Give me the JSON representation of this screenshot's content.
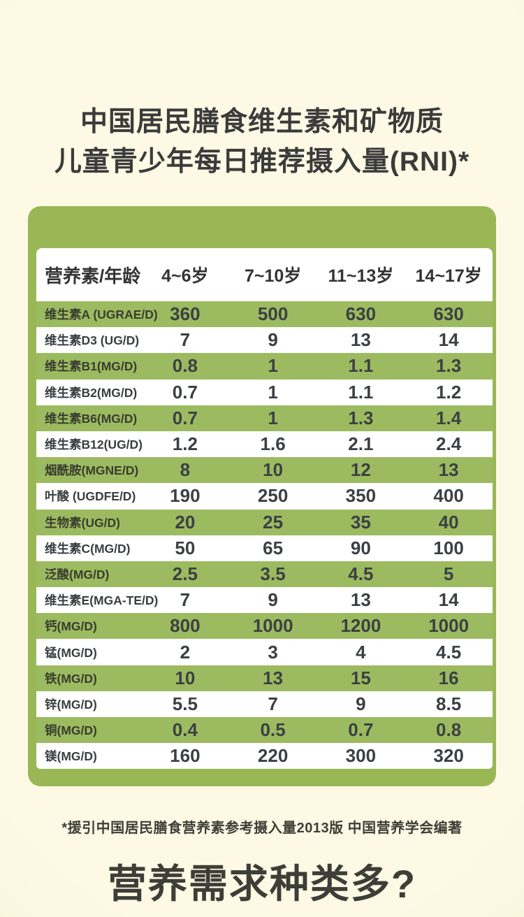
{
  "page": {
    "footnote": "*援引中国居民膳食营养素参考摄入量2013版 中国营养学会编著",
    "bottom_heading": "营养需求种类多?"
  },
  "colors": {
    "background_cream": "#fdf9e4",
    "table_frame_green": "#99b755",
    "stripe_green": "#9cbb60",
    "text_dark": "#3c4043"
  },
  "chart_data": {
    "type": "table",
    "title": "中国居民膳食维生素和矿物质 儿童青少年每日推荐摄入量(RNI)*",
    "title_lines": [
      "中国居民膳食维生素和矿物质",
      "儿童青少年每日推荐摄入量(RNI)*"
    ],
    "columns": [
      "营养素/年龄",
      "4~6岁",
      "7~10岁",
      "11~13岁",
      "14~17岁"
    ],
    "rows": [
      {
        "label": "维生素A (UGRAE/D)",
        "values": [
          "360",
          "500",
          "630",
          "630"
        ]
      },
      {
        "label": "维生素D3 (UG/D)",
        "values": [
          "7",
          "9",
          "13",
          "14"
        ]
      },
      {
        "label": "维生素B1(MG/D)",
        "values": [
          "0.8",
          "1",
          "1.1",
          "1.3"
        ]
      },
      {
        "label": "维生素B2(MG/D)",
        "values": [
          "0.7",
          "1",
          "1.1",
          "1.2"
        ]
      },
      {
        "label": "维生素B6(MG/D)",
        "values": [
          "0.7",
          "1",
          "1.3",
          "1.4"
        ]
      },
      {
        "label": "维生素B12(UG/D)",
        "values": [
          "1.2",
          "1.6",
          "2.1",
          "2.4"
        ]
      },
      {
        "label": "烟酰胺(MGNE/D)",
        "values": [
          "8",
          "10",
          "12",
          "13"
        ]
      },
      {
        "label": "叶酸 (UGDFE/D)",
        "values": [
          "190",
          "250",
          "350",
          "400"
        ]
      },
      {
        "label": "生物素(UG/D)",
        "values": [
          "20",
          "25",
          "35",
          "40"
        ]
      },
      {
        "label": "维生素C(MG/D)",
        "values": [
          "50",
          "65",
          "90",
          "100"
        ]
      },
      {
        "label": "泛酸(MG/D)",
        "values": [
          "2.5",
          "3.5",
          "4.5",
          "5"
        ]
      },
      {
        "label": "维生素E(MGA-TE/D)",
        "values": [
          "7",
          "9",
          "13",
          "14"
        ]
      },
      {
        "label": "钙(MG/D)",
        "values": [
          "800",
          "1000",
          "1200",
          "1000"
        ]
      },
      {
        "label": "锰(MG/D)",
        "values": [
          "2",
          "3",
          "4",
          "4.5"
        ]
      },
      {
        "label": "铁(MG/D)",
        "values": [
          "10",
          "13",
          "15",
          "16"
        ]
      },
      {
        "label": "锌(MG/D)",
        "values": [
          "5.5",
          "7",
          "9",
          "8.5"
        ]
      },
      {
        "label": "铜(MG/D)",
        "values": [
          "0.4",
          "0.5",
          "0.7",
          "0.8"
        ]
      },
      {
        "label": "镁(MG/D)",
        "values": [
          "160",
          "220",
          "300",
          "320"
        ]
      }
    ],
    "stripe_pattern": "first row green, alternating green/white",
    "legend": "none",
    "grid": "off"
  }
}
